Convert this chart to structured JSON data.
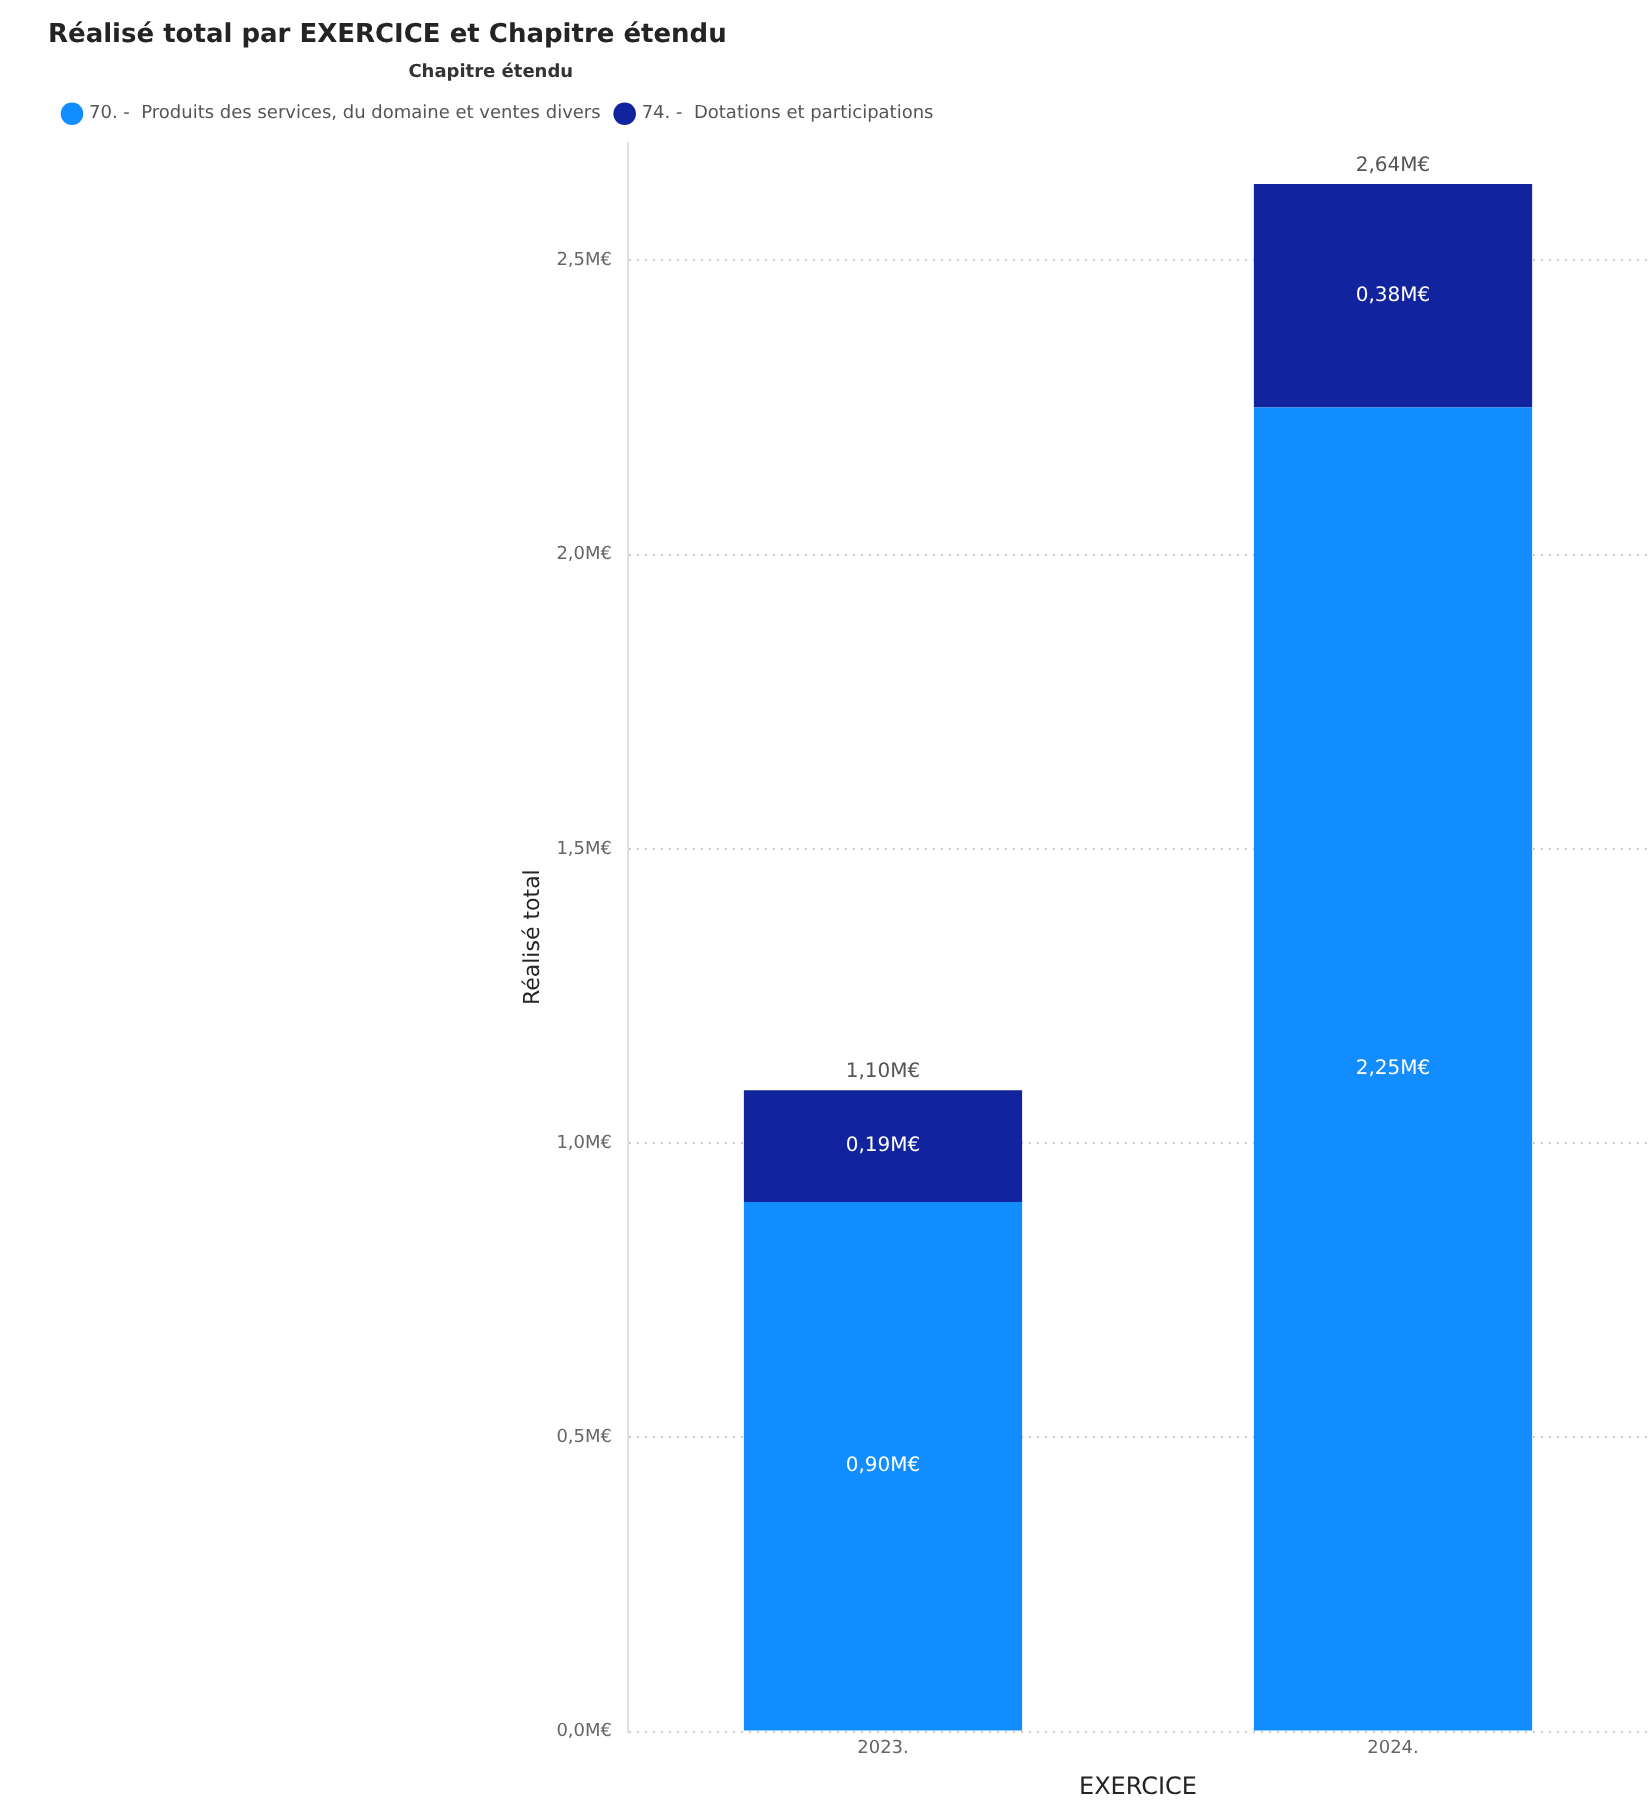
{
  "chart_data": {
    "type": "bar",
    "title": "Réalisé total par EXERCICE et Chapitre étendu",
    "legend_title": "Chapitre étendu",
    "xlabel": "EXERCICE",
    "ylabel": "Réalisé total",
    "categories": [
      "2023.",
      "2024."
    ],
    "series": [
      {
        "name": "70. -  Produits des services, du domaine et ventes divers",
        "color": "#118dff",
        "values": [
          0.9,
          2.25
        ],
        "value_labels": [
          "0,90M€",
          "2,25M€"
        ]
      },
      {
        "name": "74. -  Dotations et participations",
        "color": "#12239e",
        "values": [
          0.19,
          0.38
        ],
        "value_labels": [
          "0,19M€",
          "0,38M€"
        ]
      }
    ],
    "stacked": true,
    "totals": [
      "1,10M€",
      "2,64M€"
    ],
    "ylim": [
      0,
      2.7
    ],
    "yticks": [
      {
        "value": 0,
        "label": "0,0M€"
      },
      {
        "value": 0.5,
        "label": "0,5M€"
      },
      {
        "value": 1,
        "label": "1,0M€"
      },
      {
        "value": 1.5,
        "label": "1,5M€"
      },
      {
        "value": 2,
        "label": "2,0M€"
      },
      {
        "value": 2.5,
        "label": "2,5M€"
      }
    ],
    "grid": "y",
    "legend": "top left"
  }
}
